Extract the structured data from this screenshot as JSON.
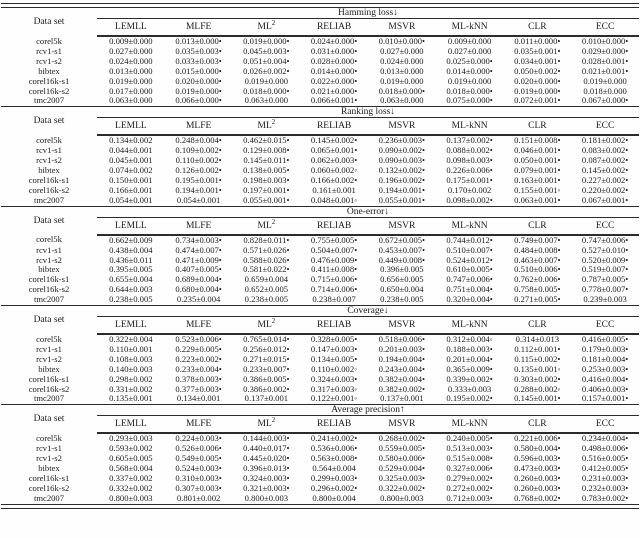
{
  "page": {
    "background": "#fefefe",
    "text_color": "#1b1b1b",
    "rule_color": "#2c2c2c",
    "marker_better": "•",
    "marker_worse": "◦"
  },
  "table": {
    "row_header": "Data set",
    "methods": [
      {
        "label": "LEMLL"
      },
      {
        "label": "MLFE"
      },
      {
        "label": "ML",
        "sup": "2"
      },
      {
        "label": "RELIAB"
      },
      {
        "label": "MSVR"
      },
      {
        "label": "ML-kNN"
      },
      {
        "label": "CLR"
      },
      {
        "label": "ECC"
      }
    ],
    "datasets": [
      "corel5k",
      "rcv1-s1",
      "rcv1-s2",
      "bibtex",
      "corel16k-s1",
      "corel16k-s2",
      "tmc2007"
    ],
    "sections": [
      {
        "metric": "Hamming loss↓",
        "rows": [
          [
            "0.009±0.000",
            "0.013±0.000•",
            "0.019±0.000•",
            "0.024±0.000•",
            "0.010±0.000•",
            "0.009±0.000",
            "0.011±0.000•",
            "0.010±0.000•"
          ],
          [
            "0.027±0.000",
            "0.035±0.003•",
            "0.045±0.003•",
            "0.031±0.000•",
            "0.027±0.000",
            "0.027±0.000",
            "0.035±0.001•",
            "0.029±0.000•"
          ],
          [
            "0.024±0.000",
            "0.033±0.003•",
            "0.051±0.004•",
            "0.028±0.000•",
            "0.024±0.000",
            "0.025±0.000•",
            "0.034±0.001•",
            "0.028±0.001•"
          ],
          [
            "0.013±0.000",
            "0.015±0.000•",
            "0.026±0.002•",
            "0.014±0.000•",
            "0.013±0.000",
            "0.014±0.000•",
            "0.050±0.002•",
            "0.021±0.001•"
          ],
          [
            "0.019±0.000",
            "0.020±0.000•",
            "0.019±0.000",
            "0.022±0.000•",
            "0.019±0.000",
            "0.019±0.000",
            "0.020±0.000•",
            "0.019±0.000"
          ],
          [
            "0.017±0.000",
            "0.019±0.000•",
            "0.018±0.000•",
            "0.021±0.000•",
            "0.018±0.000•",
            "0.018±0.000•",
            "0.019±0.000•",
            "0.018±0.000"
          ],
          [
            "0.063±0.000",
            "0.066±0.000•",
            "0.063±0.000",
            "0.066±0.001•",
            "0.063±0.000",
            "0.075±0.000•",
            "0.072±0.001•",
            "0.067±0.000•"
          ]
        ]
      },
      {
        "metric": "Ranking loss↓",
        "rows": [
          [
            "0.134±0.002",
            "0.248±0.004•",
            "0.462±0.015•",
            "0.145±0.002•",
            "0.236±0.003•",
            "0.137±0.002•",
            "0.151±0.008•",
            "0.181±0.002•"
          ],
          [
            "0.044±0.001",
            "0.109±0.002•",
            "0.129±0.008•",
            "0.065±0.001•",
            "0.090±0.002•",
            "0.088±0.002•",
            "0.046±0.001•",
            "0.083±0.002•"
          ],
          [
            "0.045±0.001",
            "0.110±0.002•",
            "0.145±0.011•",
            "0.062±0.003•",
            "0.090±0.003•",
            "0.098±0.003•",
            "0.050±0.001•",
            "0.087±0.002•"
          ],
          [
            "0.074±0.002",
            "0.126±0.002•",
            "0.138±0.005•",
            "0.060±0.002◦",
            "0.132±0.002•",
            "0.226±0.006•",
            "0.079±0.001•",
            "0.145±0.002•"
          ],
          [
            "0.150±0.001",
            "0.195±0.001•",
            "0.198±0.003•",
            "0.166±0.002•",
            "0.196±0.002•",
            "0.175±0.001•",
            "0.163±0.001•",
            "0.227±0.002•"
          ],
          [
            "0.166±0.001",
            "0.194±0.001•",
            "0.197±0.001•",
            "0.161±0.001",
            "0.194±0.001•",
            "0.170±0.002",
            "0.155±0.001◦",
            "0.220±0.002•"
          ],
          [
            "0.054±0.001",
            "0.054±0.001",
            "0.055±0.001•",
            "0.048±0.001◦",
            "0.055±0.001•",
            "0.098±0.002•",
            "0.063±0.001•",
            "0.067±0.001•"
          ]
        ]
      },
      {
        "metric": "One-error↓",
        "rows": [
          [
            "0.662±0.009",
            "0.734±0.003•",
            "0.828±0.011•",
            "0.755±0.005•",
            "0.672±0.005•",
            "0.744±0.012•",
            "0.749±0.007•",
            "0.747±0.006•"
          ],
          [
            "0.438±0.004",
            "0.474±0.007•",
            "0.571±0.026•",
            "0.504±0.007•",
            "0.453±0.007•",
            "0.510±0.007•",
            "0.484±0.008•",
            "0.527±0.010•"
          ],
          [
            "0.436±0.011",
            "0.471±0.009•",
            "0.588±0.026•",
            "0.476±0.009•",
            "0.449±0.008•",
            "0.524±0.012•",
            "0.463±0.007•",
            "0.520±0.009•"
          ],
          [
            "0.395±0.005",
            "0.407±0.005•",
            "0.581±0.022•",
            "0.411±0.008•",
            "0.396±0.005",
            "0.610±0.005•",
            "0.510±0.006•",
            "0.519±0.007•"
          ],
          [
            "0.655±0.004",
            "0.689±0.004•",
            "0.659±0.004",
            "0.715±0.006•",
            "0.656±0.005",
            "0.747±0.006•",
            "0.762±0.006•",
            "0.787±0.005•"
          ],
          [
            "0.644±0.003",
            "0.680±0.004•",
            "0.652±0.005",
            "0.714±0.006•",
            "0.650±0.004",
            "0.751±0.004•",
            "0.758±0.005•",
            "0.778±0.007•"
          ],
          [
            "0.238±0.005",
            "0.235±0.004",
            "0.238±0.005",
            "0.238±0.007",
            "0.238±0.005",
            "0.320±0.004•",
            "0.271±0.005•",
            "0.239±0.003"
          ]
        ]
      },
      {
        "metric": "Coverage↓",
        "rows": [
          [
            "0.322±0.004",
            "0.523±0.006•",
            "0.765±0.014•",
            "0.328±0.005•",
            "0.518±0.006•",
            "0.312±0.004◦",
            "0.314±0.013",
            "0.416±0.005•"
          ],
          [
            "0.110±0.001",
            "0.229±0.005•",
            "0.256±0.012•",
            "0.147±0.003•",
            "0.201±0.003•",
            "0.188±0.003•",
            "0.112±0.001•",
            "0.179±0.003•"
          ],
          [
            "0.108±0.003",
            "0.223±0.002•",
            "0.271±0.015•",
            "0.134±0.005•",
            "0.194±0.004•",
            "0.201±0.004•",
            "0.115±0.002•",
            "0.181±0.004•"
          ],
          [
            "0.140±0.003",
            "0.233±0.004•",
            "0.233±0.007•",
            "0.110±0.002◦",
            "0.243±0.004•",
            "0.365±0.009•",
            "0.135±0.001◦",
            "0.253±0.003•"
          ],
          [
            "0.298±0.002",
            "0.378±0.003•",
            "0.386±0.005•",
            "0.324±0.003•",
            "0.382±0.004•",
            "0.339±0.002•",
            "0.303±0.002•",
            "0.416±0.004•"
          ],
          [
            "0.331±0.002",
            "0.377±0.003•",
            "0.386±0.002•",
            "0.317±0.003◦",
            "0.382±0.002•",
            "0.333±0.003",
            "0.288±0.002◦",
            "0.406±0.003•"
          ],
          [
            "0.135±0.001",
            "0.134±0.001",
            "0.137±0.001",
            "0.122±0.001◦",
            "0.137±0.001",
            "0.195±0.002•",
            "0.145±0.001•",
            "0.157±0.001•"
          ]
        ]
      },
      {
        "metric": "Average precision↑",
        "rows": [
          [
            "0.293±0.003",
            "0.224±0.003•",
            "0.144±0.003•",
            "0.241±0.002•",
            "0.268±0.002•",
            "0.240±0.005•",
            "0.221±0.006•",
            "0.234±0.004•"
          ],
          [
            "0.593±0.002",
            "0.526±0.006•",
            "0.440±0.017•",
            "0.536±0.006•",
            "0.559±0.005•",
            "0.513±0.003•",
            "0.580±0.004•",
            "0.498±0.006•"
          ],
          [
            "0.605±0.005",
            "0.549±0.005•",
            "0.445±0.020•",
            "0.563±0.008•",
            "0.580±0.006•",
            "0.515±0.008•",
            "0.596±0.003•",
            "0.516±0.005•"
          ],
          [
            "0.568±0.004",
            "0.524±0.003•",
            "0.396±0.013•",
            "0.564±0.004",
            "0.529±0.004•",
            "0.327±0.006•",
            "0.473±0.003•",
            "0.412±0.005•"
          ],
          [
            "0.337±0.002",
            "0.310±0.003•",
            "0.324±0.003•",
            "0.299±0.003•",
            "0.325±0.003•",
            "0.279±0.002•",
            "0.260±0.003•",
            "0.231±0.003•"
          ],
          [
            "0.332±0.002",
            "0.307±0.003•",
            "0.321±0.003•",
            "0.296±0.002•",
            "0.322±0.002•",
            "0.272±0.002•",
            "0.260±0.003•",
            "0.232±0.003•"
          ],
          [
            "0.800±0.003",
            "0.801±0.002",
            "0.800±0.003",
            "0.800±0.004",
            "0.800±0.003",
            "0.712±0.003•",
            "0.768±0.002•",
            "0.783±0.002•"
          ]
        ]
      }
    ]
  }
}
